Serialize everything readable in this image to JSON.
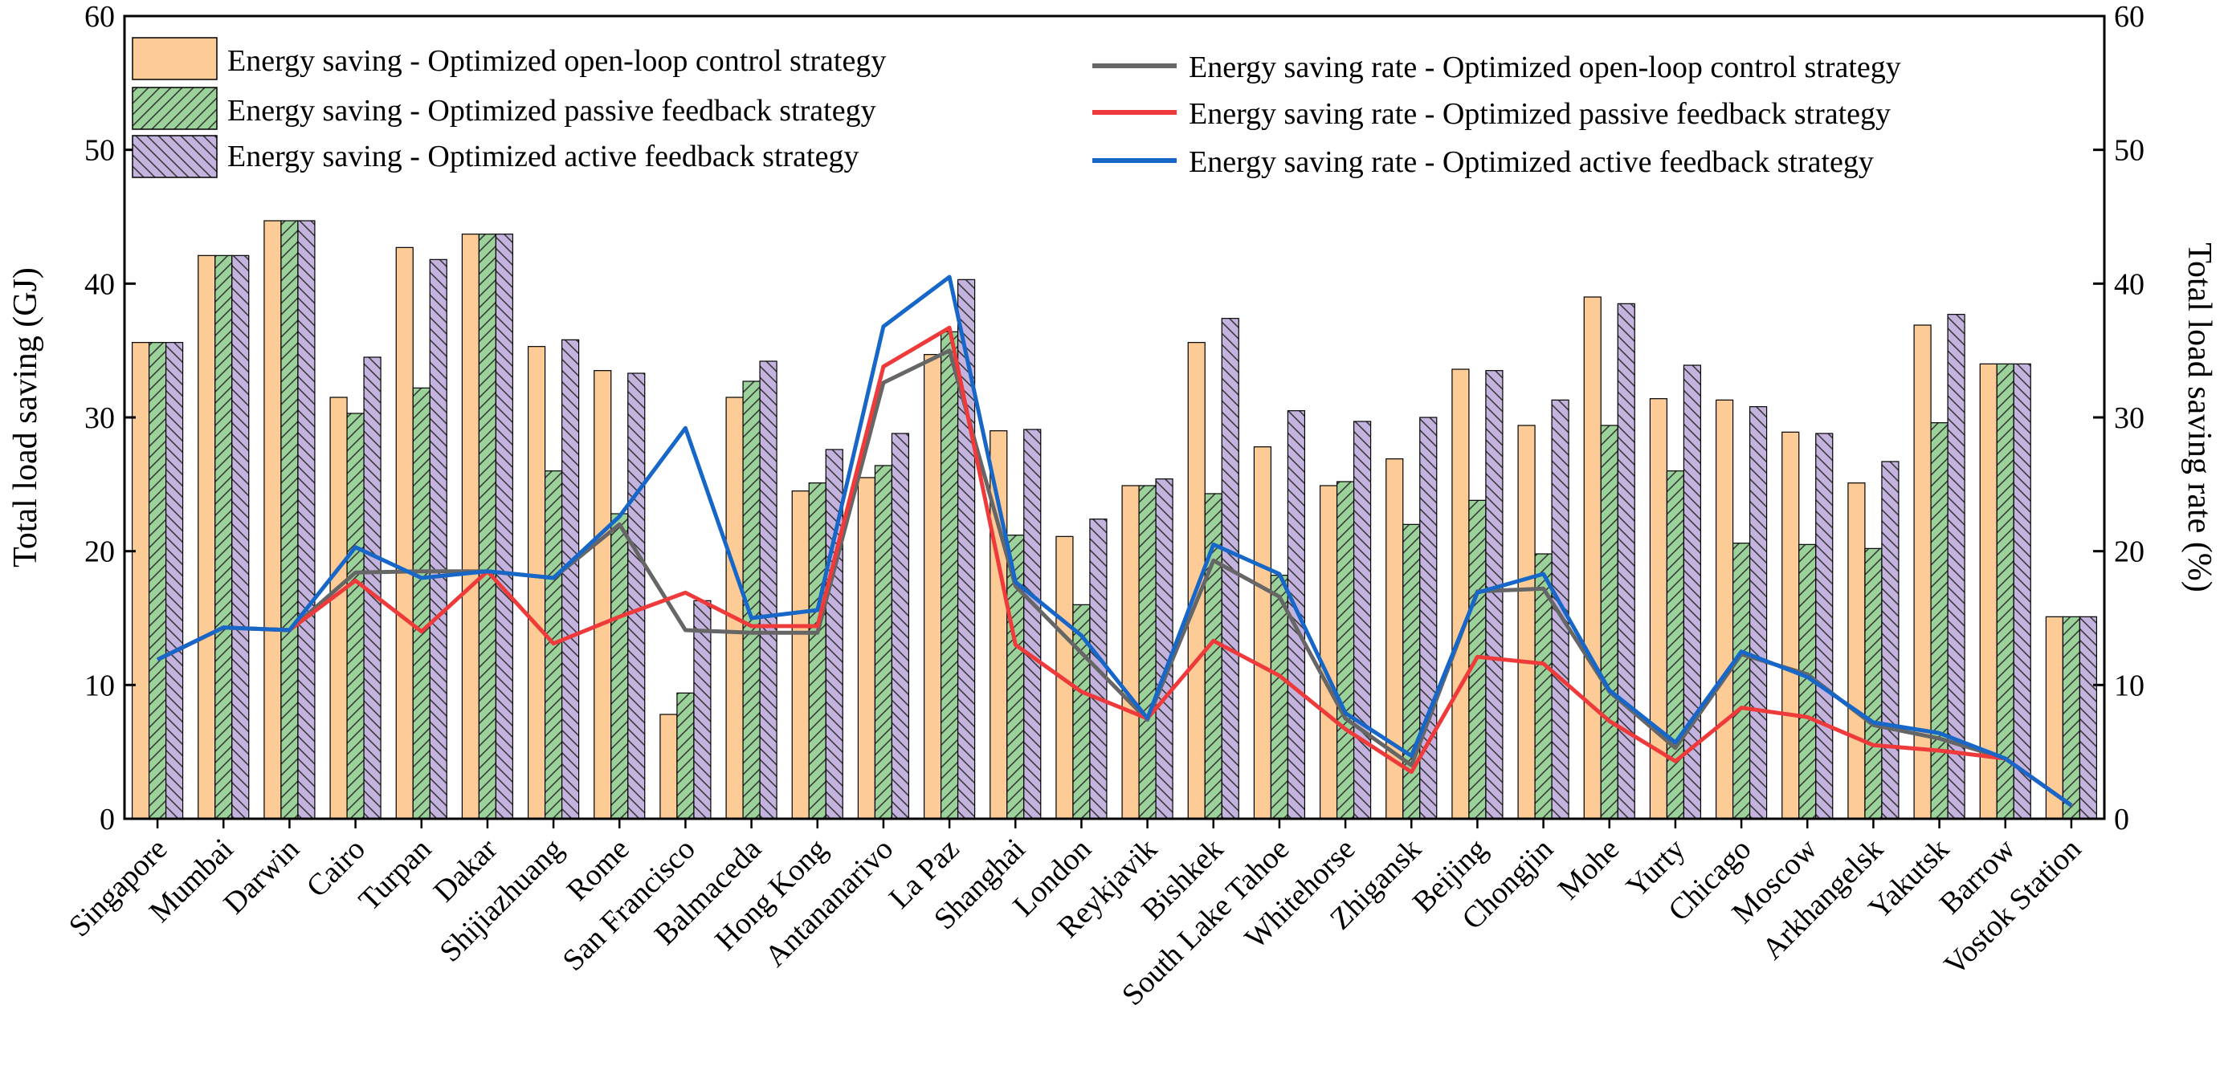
{
  "chart_data": {
    "type": "bar",
    "xlabel": "",
    "ylabel": "Total load saving (GJ)",
    "y2label": "Total load saving rate (%)",
    "ylim": [
      0,
      60
    ],
    "y2lim": [
      0,
      60
    ],
    "yticks": [
      0,
      10,
      20,
      30,
      40,
      50,
      60
    ],
    "y2ticks": [
      0,
      10,
      20,
      30,
      40,
      50,
      60
    ],
    "grid": false,
    "legend_position": "top",
    "categories": [
      "Singapore",
      "Mumbai",
      "Darwin",
      "Cairo",
      "Turpan",
      "Dakar",
      "Shijiazhuang",
      "Rome",
      "San Francisco",
      "Balmaceda",
      "Hong Kong",
      "Antananarivo",
      "La Paz",
      "Shanghai",
      "London",
      "Reykjavik",
      "Bishkek",
      "South Lake Tahoe",
      "Whitehorse",
      "Zhigansk",
      "Beijing",
      "Chongjin",
      "Mohe",
      "Yurty",
      "Chicago",
      "Moscow",
      "Arkhangelsk",
      "Yakutsk",
      "Barrow",
      "Vostok Station"
    ],
    "bar_series": [
      {
        "name": "Energy saving - Optimized open-loop control strategy",
        "color": "#FCCB96",
        "pattern": "none",
        "values": [
          35.6,
          42.1,
          44.7,
          31.5,
          42.7,
          43.7,
          35.3,
          33.5,
          7.8,
          31.5,
          24.5,
          25.5,
          34.7,
          29.0,
          21.1,
          24.9,
          35.6,
          27.8,
          24.9,
          26.9,
          33.6,
          29.4,
          39.0,
          31.4,
          31.3,
          28.9,
          25.1,
          36.9,
          34.0,
          15.1
        ]
      },
      {
        "name": "Energy saving - Optimized passive feedback strategy",
        "color": "#9AD29A",
        "pattern": "hatch-right",
        "values": [
          35.6,
          42.1,
          44.7,
          30.3,
          32.2,
          43.7,
          26.0,
          22.8,
          9.4,
          32.7,
          25.1,
          26.4,
          36.4,
          21.2,
          16.0,
          24.9,
          24.3,
          18.2,
          25.2,
          22.0,
          23.8,
          19.8,
          29.4,
          26.0,
          20.6,
          20.5,
          20.2,
          29.6,
          34.0,
          15.1
        ]
      },
      {
        "name": "Energy saving - Optimized active feedback strategy",
        "color": "#C4B3DE",
        "pattern": "hatch-left",
        "values": [
          35.6,
          42.1,
          44.7,
          34.5,
          41.8,
          43.7,
          35.8,
          33.3,
          16.3,
          34.2,
          27.6,
          28.8,
          40.3,
          29.1,
          22.4,
          25.4,
          37.4,
          30.5,
          29.7,
          30.0,
          33.5,
          31.3,
          38.5,
          33.9,
          30.8,
          28.8,
          26.7,
          37.7,
          34.0,
          15.1
        ]
      }
    ],
    "line_series": [
      {
        "name": "Energy saving rate - Optimized open-loop control strategy",
        "color": "#666666",
        "values": [
          11.9,
          14.3,
          14.1,
          18.4,
          18.5,
          18.5,
          18.0,
          22.0,
          14.1,
          13.9,
          13.9,
          32.6,
          35.0,
          17.4,
          12.4,
          7.4,
          19.3,
          16.6,
          7.5,
          4.0,
          17.0,
          17.2,
          9.5,
          5.3,
          12.3,
          10.8,
          7.0,
          6.0,
          4.5,
          1.0
        ]
      },
      {
        "name": "Energy saving rate - Optimized passive feedback strategy",
        "color": "#EE3A3A",
        "values": [
          11.9,
          14.3,
          14.1,
          17.8,
          14.0,
          18.5,
          13.1,
          15.1,
          16.9,
          14.4,
          14.4,
          33.8,
          36.7,
          13.0,
          9.5,
          7.5,
          13.3,
          10.7,
          6.7,
          3.5,
          12.1,
          11.6,
          7.3,
          4.3,
          8.3,
          7.6,
          5.5,
          5.1,
          4.5,
          1.0
        ]
      },
      {
        "name": "Energy saving rate - Optimized active feedback strategy",
        "color": "#1767C8",
        "values": [
          11.9,
          14.3,
          14.1,
          20.3,
          18.0,
          18.5,
          18.0,
          22.6,
          29.2,
          15.0,
          15.6,
          36.8,
          40.5,
          17.7,
          13.7,
          7.5,
          20.5,
          18.3,
          7.9,
          4.7,
          16.9,
          18.3,
          9.6,
          5.7,
          12.5,
          10.6,
          7.2,
          6.4,
          4.5,
          1.0
        ]
      }
    ]
  }
}
